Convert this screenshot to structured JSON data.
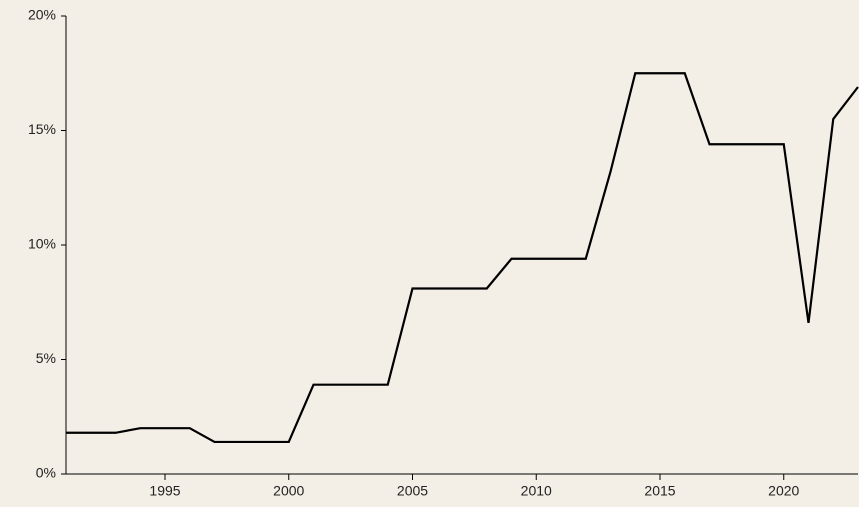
{
  "chart_data": {
    "type": "line",
    "x": [
      1991,
      1992,
      1993,
      1994,
      1995,
      1996,
      1997,
      1998,
      1999,
      2000,
      2001,
      2002,
      2003,
      2004,
      2005,
      2006,
      2007,
      2008,
      2009,
      2010,
      2011,
      2012,
      2013,
      2014,
      2015,
      2016,
      2017,
      2018,
      2019,
      2020,
      2021,
      2022,
      2023
    ],
    "series": [
      {
        "color": "#000000",
        "values": [
          1.8,
          1.8,
          1.8,
          2.0,
          2.0,
          2.0,
          1.4,
          1.4,
          1.4,
          1.4,
          3.9,
          3.9,
          3.9,
          3.9,
          8.1,
          8.1,
          8.1,
          8.1,
          9.4,
          9.4,
          9.4,
          9.4,
          13.2,
          17.5,
          17.5,
          17.5,
          14.4,
          14.4,
          14.4,
          14.4,
          6.6,
          15.5,
          16.9
        ]
      }
    ],
    "xlim": [
      1991,
      2023
    ],
    "xticks": [
      1995,
      2000,
      2005,
      2010,
      2015,
      2020
    ],
    "ylim": [
      0,
      20
    ],
    "yticks": [
      {
        "value": 0,
        "label": "0%"
      },
      {
        "value": 5,
        "label": "5%"
      },
      {
        "value": 10,
        "label": "10%"
      },
      {
        "value": 15,
        "label": "15%"
      },
      {
        "value": 20,
        "label": "20%"
      }
    ]
  }
}
